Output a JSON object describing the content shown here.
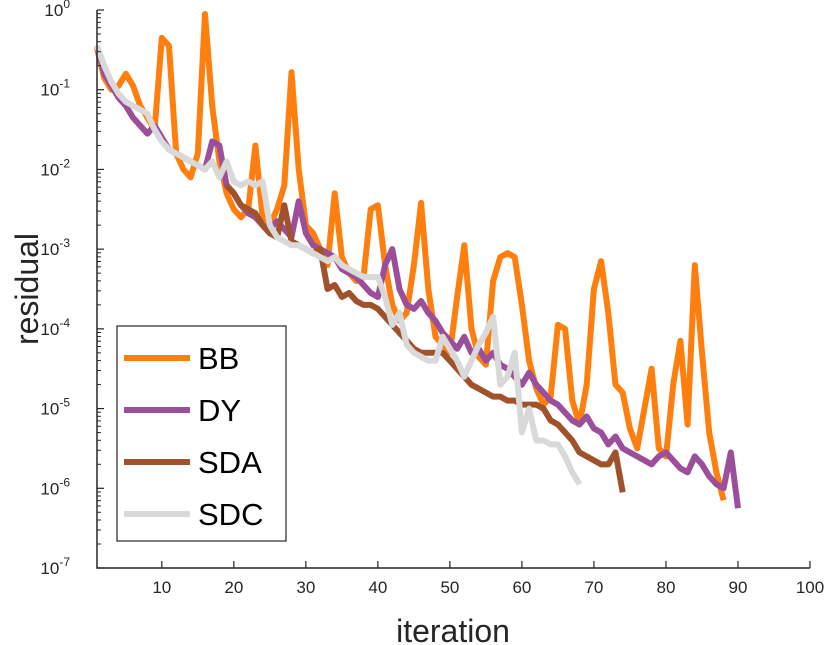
{
  "chart_data": {
    "type": "line",
    "xlabel": "iteration",
    "ylabel": "residual",
    "xlim": [
      1,
      100
    ],
    "ylim_log10": [
      -7,
      0
    ],
    "y_scale": "log",
    "grid": false,
    "legend_position": "bottom-left",
    "x_ticks": [
      10,
      20,
      30,
      40,
      50,
      60,
      70,
      80,
      90,
      100
    ],
    "y_ticks": [
      {
        "base": "10",
        "exp": "0"
      },
      {
        "base": "10",
        "exp": "-1"
      },
      {
        "base": "10",
        "exp": "-2"
      },
      {
        "base": "10",
        "exp": "-3"
      },
      {
        "base": "10",
        "exp": "-4"
      },
      {
        "base": "10",
        "exp": "-5"
      },
      {
        "base": "10",
        "exp": "-6"
      },
      {
        "base": "10",
        "exp": "-7"
      }
    ],
    "series": [
      {
        "name": "BB",
        "color": "#FF7F0E",
        "x": [
          1,
          2,
          3,
          4,
          5,
          6,
          7,
          8,
          9,
          10,
          11,
          12,
          13,
          14,
          15,
          16,
          17,
          18,
          19,
          20,
          21,
          22,
          23,
          24,
          25,
          26,
          27,
          28,
          29,
          30,
          31,
          32,
          33,
          34,
          35,
          36,
          37,
          38,
          39,
          40,
          41,
          42,
          43,
          44,
          45,
          46,
          47,
          48,
          49,
          50,
          51,
          52,
          53,
          54,
          55,
          56,
          57,
          58,
          59,
          60,
          61,
          62,
          63,
          64,
          65,
          66,
          67,
          68,
          69,
          70,
          71,
          72,
          73,
          74,
          75,
          76,
          77,
          78,
          79,
          80,
          81,
          82,
          83,
          84,
          85,
          86,
          87,
          88
        ],
        "log10_values": [
          -0.48,
          -0.85,
          -1.0,
          -0.95,
          -0.8,
          -0.95,
          -1.2,
          -1.35,
          -1.5,
          -0.35,
          -0.45,
          -1.8,
          -2.0,
          -2.1,
          -1.8,
          -0.05,
          -1.2,
          -1.9,
          -2.3,
          -2.5,
          -2.6,
          -2.5,
          -1.7,
          -2.6,
          -2.7,
          -2.5,
          -2.2,
          -0.78,
          -2.0,
          -2.7,
          -2.8,
          -3.0,
          -3.2,
          -2.3,
          -3.1,
          -3.3,
          -3.4,
          -3.35,
          -2.5,
          -2.45,
          -3.2,
          -3.7,
          -3.9,
          -3.8,
          -3.2,
          -2.42,
          -3.5,
          -4.1,
          -4.2,
          -4.3,
          -3.6,
          -2.95,
          -4.0,
          -4.35,
          -4.45,
          -3.4,
          -3.1,
          -3.05,
          -3.1,
          -3.7,
          -4.4,
          -4.75,
          -4.95,
          -4.85,
          -3.95,
          -4.0,
          -4.9,
          -5.2,
          -4.7,
          -3.5,
          -3.15,
          -3.8,
          -4.7,
          -4.8,
          -5.25,
          -5.5,
          -5.0,
          -4.5,
          -5.5,
          -5.6,
          -4.7,
          -4.15,
          -5.2,
          -3.2,
          -4.3,
          -5.3,
          -5.8,
          -6.15
        ]
      },
      {
        "name": "DY",
        "color": "#9B4F9B",
        "x": [
          1,
          2,
          3,
          4,
          5,
          6,
          7,
          8,
          9,
          10,
          11,
          12,
          13,
          14,
          15,
          16,
          17,
          18,
          19,
          20,
          21,
          22,
          23,
          24,
          25,
          26,
          27,
          28,
          29,
          30,
          31,
          32,
          33,
          34,
          35,
          36,
          37,
          38,
          39,
          40,
          41,
          42,
          43,
          44,
          45,
          46,
          47,
          48,
          49,
          50,
          51,
          52,
          53,
          54,
          55,
          56,
          57,
          58,
          59,
          60,
          61,
          62,
          63,
          64,
          65,
          66,
          67,
          68,
          69,
          70,
          71,
          72,
          73,
          74,
          75,
          76,
          77,
          78,
          79,
          80,
          81,
          82,
          83,
          84,
          85,
          86,
          87,
          88,
          89,
          90
        ],
        "log10_values": [
          -0.45,
          -0.8,
          -0.95,
          -1.1,
          -1.2,
          -1.35,
          -1.45,
          -1.55,
          -1.45,
          -1.6,
          -1.75,
          -1.8,
          -1.85,
          -1.9,
          -1.95,
          -2.0,
          -1.65,
          -1.7,
          -2.2,
          -2.3,
          -2.45,
          -2.55,
          -2.6,
          -2.7,
          -2.75,
          -2.65,
          -2.75,
          -2.85,
          -2.4,
          -2.8,
          -2.95,
          -3.0,
          -3.05,
          -3.1,
          -3.25,
          -3.3,
          -3.35,
          -3.45,
          -3.55,
          -3.6,
          -3.2,
          -3.0,
          -3.5,
          -3.7,
          -3.75,
          -3.65,
          -3.8,
          -3.9,
          -4.05,
          -4.15,
          -4.25,
          -4.1,
          -4.3,
          -4.25,
          -4.4,
          -4.3,
          -4.45,
          -4.5,
          -4.6,
          -4.7,
          -4.55,
          -4.7,
          -4.8,
          -4.9,
          -4.95,
          -5.05,
          -5.15,
          -5.2,
          -5.1,
          -5.25,
          -5.3,
          -5.45,
          -5.35,
          -5.5,
          -5.55,
          -5.6,
          -5.65,
          -5.7,
          -5.6,
          -5.55,
          -5.65,
          -5.75,
          -5.8,
          -5.6,
          -5.7,
          -5.85,
          -5.95,
          -6.0,
          -5.55,
          -6.25
        ]
      },
      {
        "name": "SDA",
        "color": "#A0522D",
        "x": [
          19,
          20,
          21,
          22,
          23,
          24,
          25,
          26,
          27,
          28,
          29,
          30,
          31,
          32,
          33,
          34,
          35,
          36,
          37,
          38,
          39,
          40,
          41,
          42,
          43,
          44,
          45,
          46,
          47,
          48,
          49,
          50,
          51,
          52,
          53,
          54,
          55,
          56,
          57,
          58,
          59,
          60,
          61,
          62,
          63,
          64,
          65,
          66,
          67,
          68,
          69,
          70,
          71,
          72,
          73,
          74
        ],
        "log10_values": [
          -2.2,
          -2.3,
          -2.45,
          -2.5,
          -2.55,
          -2.7,
          -2.8,
          -2.85,
          -2.45,
          -2.9,
          -2.95,
          -3.0,
          -3.05,
          -3.0,
          -3.5,
          -3.45,
          -3.6,
          -3.55,
          -3.65,
          -3.7,
          -3.7,
          -3.75,
          -3.85,
          -3.95,
          -4.05,
          -4.15,
          -4.25,
          -4.3,
          -4.3,
          -4.3,
          -4.3,
          -4.4,
          -4.5,
          -4.6,
          -4.7,
          -4.75,
          -4.8,
          -4.85,
          -4.85,
          -4.9,
          -4.9,
          -4.95,
          -4.95,
          -4.95,
          -5.0,
          -5.15,
          -5.2,
          -5.3,
          -5.4,
          -5.55,
          -5.6,
          -5.65,
          -5.7,
          -5.7,
          -5.55,
          -6.05
        ]
      },
      {
        "name": "SDC",
        "color": "#D9D9D9",
        "x": [
          1,
          2,
          3,
          4,
          5,
          6,
          7,
          8,
          9,
          10,
          11,
          12,
          13,
          14,
          15,
          16,
          17,
          18,
          19,
          20,
          21,
          22,
          23,
          24,
          25,
          26,
          27,
          28,
          29,
          30,
          31,
          32,
          33,
          34,
          35,
          36,
          37,
          38,
          39,
          40,
          41,
          42,
          43,
          44,
          45,
          46,
          47,
          48,
          49,
          50,
          51,
          52,
          53,
          54,
          55,
          56,
          57,
          58,
          59,
          60,
          61,
          62,
          63,
          64,
          65,
          66,
          67,
          68
        ],
        "log10_values": [
          -0.45,
          -0.7,
          -0.9,
          -1.05,
          -1.15,
          -1.2,
          -1.25,
          -1.3,
          -1.5,
          -1.65,
          -1.75,
          -1.8,
          -1.85,
          -1.9,
          -1.95,
          -2.0,
          -1.9,
          -2.1,
          -1.9,
          -2.15,
          -2.2,
          -2.15,
          -2.2,
          -2.15,
          -2.7,
          -2.85,
          -2.9,
          -2.95,
          -2.95,
          -3.0,
          -3.05,
          -3.1,
          -3.15,
          -3.1,
          -3.2,
          -3.25,
          -3.3,
          -3.35,
          -3.35,
          -3.35,
          -3.6,
          -3.95,
          -3.8,
          -4.2,
          -4.3,
          -4.35,
          -4.4,
          -4.4,
          -4.1,
          -4.25,
          -4.4,
          -4.6,
          -4.4,
          -4.2,
          -4.05,
          -3.85,
          -4.7,
          -4.6,
          -4.3,
          -5.3,
          -5.0,
          -5.4,
          -5.4,
          -5.45,
          -5.45,
          -5.6,
          -5.8,
          -5.95
        ]
      }
    ]
  }
}
